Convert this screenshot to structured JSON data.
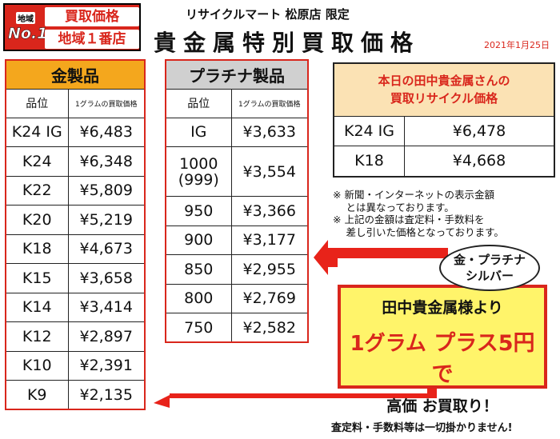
{
  "badge": {
    "chiiki": "地域",
    "no1": "No.1",
    "line1": "買取価格",
    "line2": "地域１番店"
  },
  "header": {
    "store": "リサイクルマート 松原店 限定",
    "title": "貴金属特別買取価格",
    "date": "2021年1月25日"
  },
  "gold_table": {
    "title": "金製品",
    "col_purity": "品位",
    "col_price": "1グラムの買取価格",
    "rows": [
      {
        "purity": "K24 IG",
        "price": "¥6,483"
      },
      {
        "purity": "K24",
        "price": "¥6,348"
      },
      {
        "purity": "K22",
        "price": "¥5,809"
      },
      {
        "purity": "K20",
        "price": "¥5,219"
      },
      {
        "purity": "K18",
        "price": "¥4,673"
      },
      {
        "purity": "K15",
        "price": "¥3,658"
      },
      {
        "purity": "K14",
        "price": "¥3,414"
      },
      {
        "purity": "K12",
        "price": "¥2,897"
      },
      {
        "purity": "K10",
        "price": "¥2,391"
      },
      {
        "purity": "K9",
        "price": "¥2,135"
      }
    ]
  },
  "platinum_table": {
    "title": "プラチナ製品",
    "col_purity": "品位",
    "col_price": "1グラムの買取価格",
    "rows": [
      {
        "purity": "IG",
        "price": "¥3,633"
      },
      {
        "purity": "1000",
        "purity2": "(999)",
        "price": "¥3,554"
      },
      {
        "purity": "950",
        "price": "¥3,366"
      },
      {
        "purity": "900",
        "price": "¥3,177"
      },
      {
        "purity": "850",
        "price": "¥2,955"
      },
      {
        "purity": "800",
        "price": "¥2,769"
      },
      {
        "purity": "750",
        "price": "¥2,582"
      }
    ]
  },
  "tanaka": {
    "head_line1": "本日の田中貴金属さんの",
    "head_line2": "買取リサイクル価格",
    "rows": [
      {
        "purity": "K24 IG",
        "price": "¥6,478"
      },
      {
        "purity": "K18",
        "price": "¥4,668"
      }
    ]
  },
  "notes": [
    "※ 新聞・インターネットの表示金額",
    "　 とは異なっております。",
    "※ 上記の金額は査定料・手数料を",
    "　 差し引いた価格となっております。"
  ],
  "bubble": {
    "line1": "金・プラチナ",
    "line2": "シルバー"
  },
  "promo": {
    "line1": "田中貴金属様より",
    "line2_gram": "1グラム",
    "line2_rest": "プラス5円で",
    "line3": "高価 お買取り！"
  },
  "footer": "査定料・手数料等は一切掛かりません!",
  "colors": {
    "red": "#d9261c",
    "gold_header": "#f4a71d",
    "platinum_header": "#d0d0d0",
    "promo_bg": "#fff46a",
    "tanaka_head_bg": "#fbe2b4"
  }
}
